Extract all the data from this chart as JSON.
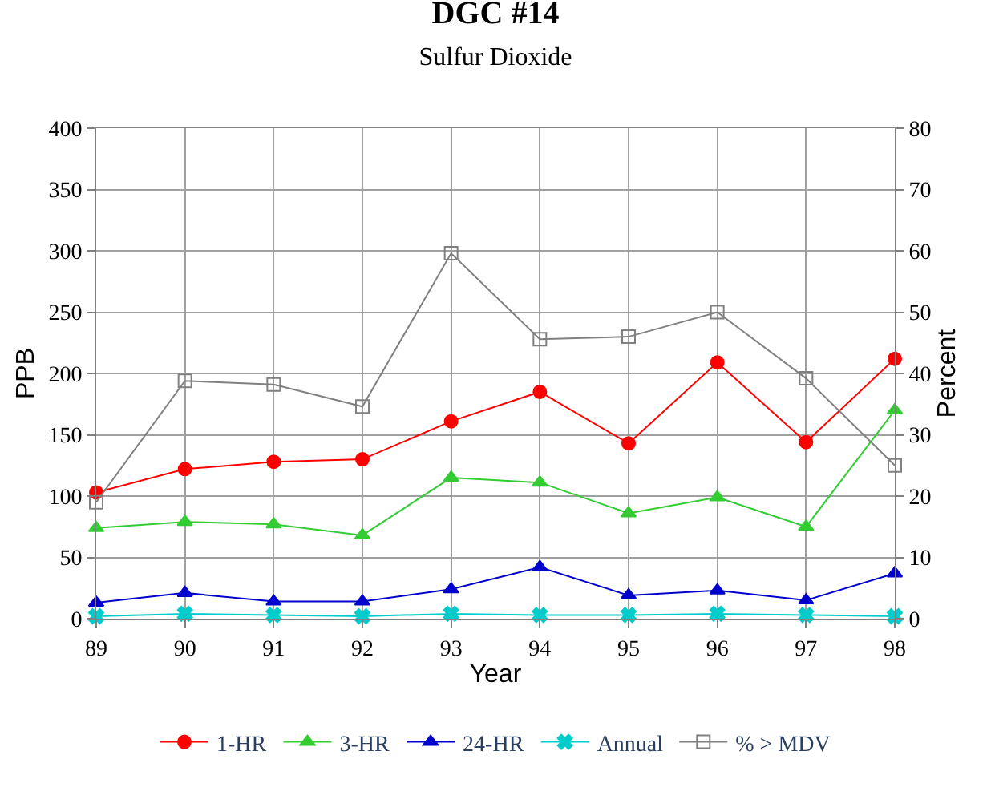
{
  "chart_data": {
    "type": "line",
    "title": "DGC #14",
    "subtitle": "Sulfur Dioxide",
    "xlabel": "Year",
    "ylabel": "PPB",
    "y2label": "Percent",
    "x": [
      89,
      90,
      91,
      92,
      93,
      94,
      95,
      96,
      97,
      98
    ],
    "xlim": [
      89,
      98
    ],
    "xticks": [
      89,
      90,
      91,
      92,
      93,
      94,
      95,
      96,
      97,
      98
    ],
    "ylim": [
      0,
      400
    ],
    "yticks": [
      0,
      50,
      100,
      150,
      200,
      250,
      300,
      350,
      400
    ],
    "y2lim": [
      0,
      80
    ],
    "y2ticks": [
      0,
      10,
      20,
      30,
      40,
      50,
      60,
      70,
      80
    ],
    "grid": true,
    "legend": "bottom",
    "series": [
      {
        "name": "1-HR",
        "color": "#ff0000",
        "marker": "circle",
        "values": [
          103,
          122,
          128,
          130,
          161,
          185,
          143,
          209,
          144,
          212
        ]
      },
      {
        "name": "3-HR",
        "color": "#33cc33",
        "marker": "triangle",
        "values": [
          74,
          79,
          77,
          68,
          115,
          111,
          86,
          99,
          75,
          170
        ]
      },
      {
        "name": "24-HR",
        "color": "#0000cc",
        "marker": "triangle",
        "values": [
          13,
          21,
          14,
          14,
          24,
          42,
          19,
          23,
          15,
          37
        ]
      },
      {
        "name": "Annual",
        "color": "#00cccc",
        "marker": "cross",
        "values": [
          2,
          4,
          3,
          2,
          4,
          3,
          3,
          4,
          3,
          2
        ]
      },
      {
        "name": "% > MDV",
        "color": "#808080",
        "marker": "square",
        "axis": "y2",
        "values": [
          19,
          38.8,
          38.2,
          34.6,
          59.6,
          45.6,
          46,
          50,
          39.2,
          25
        ]
      }
    ]
  }
}
